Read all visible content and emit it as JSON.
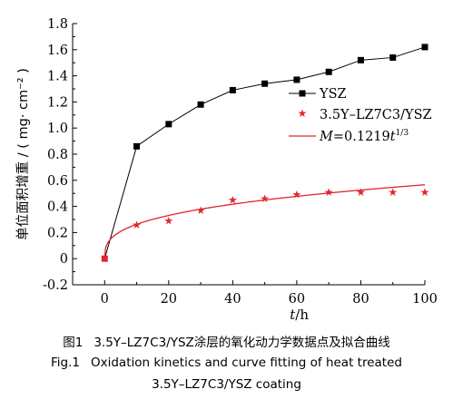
{
  "chart_data": {
    "type": "line",
    "x_label": "t/h",
    "y_label": "单位面积增重 / ( mg· cm⁻² )",
    "xlim": [
      -10,
      100
    ],
    "ylim": [
      -0.2,
      1.8
    ],
    "x_ticks": [
      "0",
      "20",
      "40",
      "60",
      "80",
      "100"
    ],
    "y_ticks": [
      "-0.2",
      "0",
      "0.2",
      "0.4",
      "0.6",
      "0.8",
      "1.0",
      "1.2",
      "1.4",
      "1.6",
      "1.8"
    ],
    "grid": false,
    "legend_position": "right",
    "series": [
      {
        "name": "YSZ",
        "marker": "square",
        "color": "#000000",
        "x": [
          0,
          10,
          20,
          30,
          40,
          50,
          60,
          70,
          80,
          90,
          100
        ],
        "y": [
          0,
          0.86,
          1.03,
          1.18,
          1.29,
          1.34,
          1.37,
          1.43,
          1.52,
          1.54,
          1.62
        ]
      },
      {
        "name": "3.5Y–LZ7C3/YSZ",
        "marker": "star",
        "color": "#e0262f",
        "x": [
          0,
          10,
          20,
          30,
          40,
          50,
          60,
          70,
          80,
          90,
          100
        ],
        "y": [
          0,
          0.26,
          0.29,
          0.37,
          0.45,
          0.46,
          0.49,
          0.51,
          0.51,
          0.51,
          0.51
        ]
      },
      {
        "name": "M=0.1219t^1/3",
        "type": "fit_curve",
        "color": "#e0262f",
        "formula": {
          "coef": 0.1219,
          "power": 0.3333
        }
      }
    ]
  },
  "legend": {
    "ysz": "YSZ",
    "coating": "3.5Y–LZ7C3/YSZ",
    "fit_prefix": "M",
    "fit_mid": "=0.1219",
    "fit_var": "t",
    "fit_power": "1/3"
  },
  "caption": {
    "cn_lead": "图1",
    "cn_text": "3.5Y–LZ7C3/YSZ涂层的氧化动力学数据点及拟合曲线",
    "en_lead": "Fig.1",
    "en_text": "Oxidation kinetics and curve fitting of heat treated",
    "en_text2": "3.5Y–LZ7C3/YSZ coating"
  }
}
